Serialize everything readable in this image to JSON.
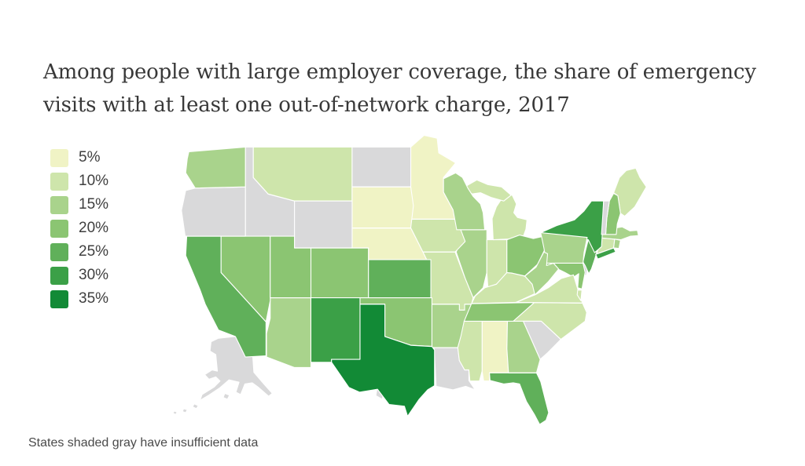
{
  "title": {
    "text": "Among people with large employer coverage, the share of emergency visits with at least one out-of-network charge, 2017"
  },
  "footnote": {
    "text": "States shaded gray have insufficient data"
  },
  "chart_data": {
    "type": "choropleth",
    "geography": "United States, by state",
    "title": "Among people with large employer coverage, the share of emergency visits with at least one out-of-network charge, 2017",
    "unit": "percent of emergency visits with at least one out-of-network charge",
    "year": 2017,
    "note": "States shaded gray have insufficient data",
    "legend": {
      "position": "top-left",
      "bins": [
        {
          "label": "5%",
          "value": 5,
          "color": "#f0f3c5"
        },
        {
          "label": "10%",
          "value": 10,
          "color": "#cee5ab"
        },
        {
          "label": "15%",
          "value": 15,
          "color": "#a9d38c"
        },
        {
          "label": "20%",
          "value": 20,
          "color": "#8bc572"
        },
        {
          "label": "25%",
          "value": 25,
          "color": "#60b05a"
        },
        {
          "label": "30%",
          "value": 30,
          "color": "#3ba047"
        },
        {
          "label": "35%",
          "value": 35,
          "color": "#128a36"
        }
      ]
    },
    "no_data_color": "#d9d9da",
    "no_data_label": "insufficient data",
    "states": [
      {
        "abbr": "AL",
        "name": "Alabama",
        "value": 5
      },
      {
        "abbr": "AK",
        "name": "Alaska",
        "value": null
      },
      {
        "abbr": "AZ",
        "name": "Arizona",
        "value": 15
      },
      {
        "abbr": "AR",
        "name": "Arkansas",
        "value": 15
      },
      {
        "abbr": "CA",
        "name": "California",
        "value": 25
      },
      {
        "abbr": "CO",
        "name": "Colorado",
        "value": 20
      },
      {
        "abbr": "CT",
        "name": "Connecticut",
        "value": 10
      },
      {
        "abbr": "DE",
        "name": "Delaware",
        "value": null
      },
      {
        "abbr": "DC",
        "name": "District of Columbia",
        "value": 30
      },
      {
        "abbr": "FL",
        "name": "Florida",
        "value": 25
      },
      {
        "abbr": "GA",
        "name": "Georgia",
        "value": 15
      },
      {
        "abbr": "HI",
        "name": "Hawaii",
        "value": null
      },
      {
        "abbr": "ID",
        "name": "Idaho",
        "value": null
      },
      {
        "abbr": "IL",
        "name": "Illinois",
        "value": 15
      },
      {
        "abbr": "IN",
        "name": "Indiana",
        "value": 10
      },
      {
        "abbr": "IA",
        "name": "Iowa",
        "value": 10
      },
      {
        "abbr": "KS",
        "name": "Kansas",
        "value": 25
      },
      {
        "abbr": "KY",
        "name": "Kentucky",
        "value": 10
      },
      {
        "abbr": "LA",
        "name": "Louisiana",
        "value": null
      },
      {
        "abbr": "ME",
        "name": "Maine",
        "value": 10
      },
      {
        "abbr": "MD",
        "name": "Maryland",
        "value": 20
      },
      {
        "abbr": "MA",
        "name": "Massachusetts",
        "value": 15
      },
      {
        "abbr": "MI",
        "name": "Michigan",
        "value": 10
      },
      {
        "abbr": "MN",
        "name": "Minnesota",
        "value": 5
      },
      {
        "abbr": "MS",
        "name": "Mississippi",
        "value": 10
      },
      {
        "abbr": "MO",
        "name": "Missouri",
        "value": 10
      },
      {
        "abbr": "MT",
        "name": "Montana",
        "value": 10
      },
      {
        "abbr": "NE",
        "name": "Nebraska",
        "value": 5
      },
      {
        "abbr": "NV",
        "name": "Nevada",
        "value": 20
      },
      {
        "abbr": "NH",
        "name": "New Hampshire",
        "value": 20
      },
      {
        "abbr": "NJ",
        "name": "New Jersey",
        "value": 25
      },
      {
        "abbr": "NM",
        "name": "New Mexico",
        "value": 30
      },
      {
        "abbr": "NY",
        "name": "New York",
        "value": 30
      },
      {
        "abbr": "NC",
        "name": "North Carolina",
        "value": 10
      },
      {
        "abbr": "ND",
        "name": "North Dakota",
        "value": null
      },
      {
        "abbr": "OH",
        "name": "Ohio",
        "value": 20
      },
      {
        "abbr": "OK",
        "name": "Oklahoma",
        "value": 20
      },
      {
        "abbr": "OR",
        "name": "Oregon",
        "value": null
      },
      {
        "abbr": "PA",
        "name": "Pennsylvania",
        "value": 15
      },
      {
        "abbr": "RI",
        "name": "Rhode Island",
        "value": 15
      },
      {
        "abbr": "SC",
        "name": "South Carolina",
        "value": null
      },
      {
        "abbr": "SD",
        "name": "South Dakota",
        "value": 5
      },
      {
        "abbr": "TN",
        "name": "Tennessee",
        "value": 20
      },
      {
        "abbr": "TX",
        "name": "Texas",
        "value": 35
      },
      {
        "abbr": "UT",
        "name": "Utah",
        "value": 20
      },
      {
        "abbr": "VT",
        "name": "Vermont",
        "value": null
      },
      {
        "abbr": "VA",
        "name": "Virginia",
        "value": 10
      },
      {
        "abbr": "WA",
        "name": "Washington",
        "value": 15
      },
      {
        "abbr": "WV",
        "name": "West Virginia",
        "value": 15
      },
      {
        "abbr": "WI",
        "name": "Wisconsin",
        "value": 15
      },
      {
        "abbr": "WY",
        "name": "Wyoming",
        "value": null
      }
    ]
  }
}
